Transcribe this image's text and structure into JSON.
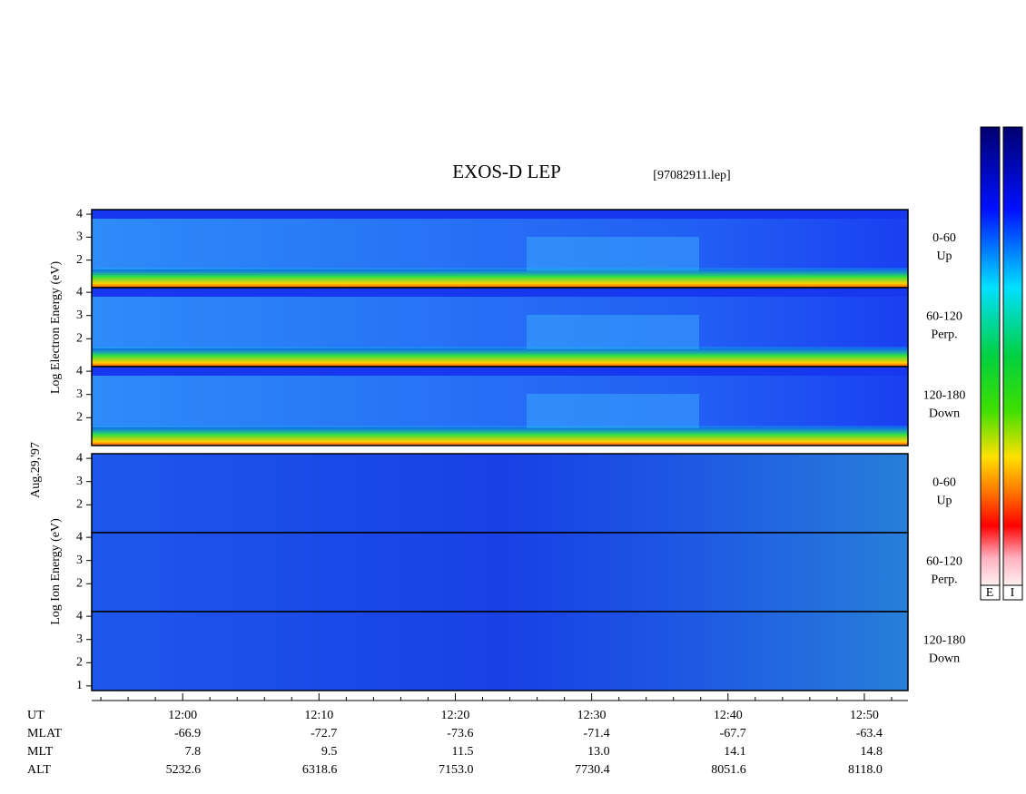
{
  "chart_data": {
    "type": "spectrogram",
    "title": "EXOS-D LEP",
    "file_label": "[97082911.lep]",
    "date_label": "Aug.29,'97",
    "electron_axis_label": "Log Electron Energy (eV)",
    "ion_axis_label": "Log Ion Energy (eV)",
    "panels": [
      {
        "species": "electron",
        "ylim": [
          0.8,
          4.2
        ],
        "yticks": [
          2,
          3,
          4
        ],
        "range": "0-60",
        "direction": "Up"
      },
      {
        "species": "electron",
        "ylim": [
          0.8,
          4.2
        ],
        "yticks": [
          2,
          3,
          4
        ],
        "range": "60-120",
        "direction": "Perp."
      },
      {
        "species": "electron",
        "ylim": [
          0.8,
          4.2
        ],
        "yticks": [
          2,
          3,
          4
        ],
        "range": "120-180",
        "direction": "Down"
      },
      {
        "species": "ion",
        "ylim": [
          0.8,
          4.2
        ],
        "yticks": [
          2,
          3,
          4
        ],
        "range": "0-60",
        "direction": "Up"
      },
      {
        "species": "ion",
        "ylim": [
          0.8,
          4.2
        ],
        "yticks": [
          2,
          3,
          4
        ],
        "range": "60-120",
        "direction": "Perp."
      },
      {
        "species": "ion",
        "ylim": [
          0.8,
          4.2
        ],
        "yticks": [
          1,
          2,
          3,
          4
        ],
        "range": "120-180",
        "direction": "Down"
      }
    ],
    "xlim": [
      713.33,
      773.2
    ],
    "xticks": [
      {
        "value": 720,
        "label": "12:00"
      },
      {
        "value": 730,
        "label": "12:10"
      },
      {
        "value": 740,
        "label": "12:20"
      },
      {
        "value": 750,
        "label": "12:30"
      },
      {
        "value": 760,
        "label": "12:40"
      },
      {
        "value": 770,
        "label": "12:50"
      }
    ],
    "xminorticks": [
      714,
      716,
      718,
      722,
      724,
      726,
      728,
      732,
      734,
      736,
      738,
      742,
      744,
      746,
      748,
      752,
      754,
      756,
      758,
      762,
      764,
      766,
      768,
      772
    ],
    "orbit_rows": [
      {
        "name": "UT",
        "values": []
      },
      {
        "name": "MLAT",
        "values": [
          "-66.9",
          "-72.7",
          "-73.6",
          "-71.4",
          "-67.7",
          "-63.4"
        ]
      },
      {
        "name": "MLT",
        "values": [
          "7.8",
          "9.5",
          "11.5",
          "13.0",
          "14.1",
          "14.8"
        ]
      },
      {
        "name": "ALT",
        "values": [
          "5232.6",
          "6318.6",
          "7153.0",
          "7730.4",
          "8051.6",
          "8118.0"
        ]
      }
    ],
    "colorbar_labels": [
      "E",
      "I"
    ]
  }
}
